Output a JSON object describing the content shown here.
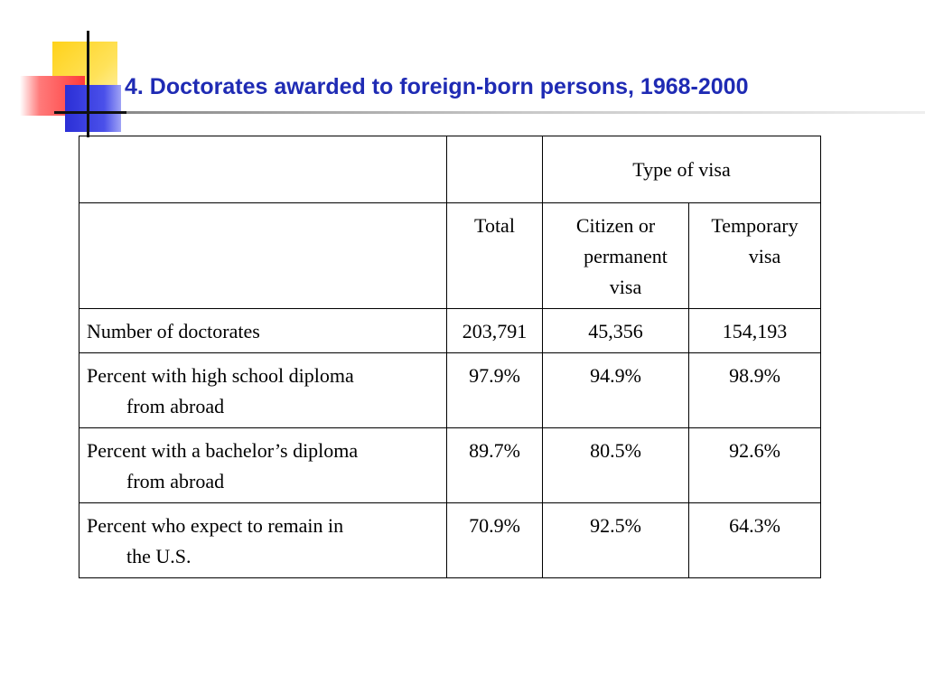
{
  "slide": {
    "title": "4. Doctorates awarded to foreign-born persons, 1968-2000"
  },
  "table": {
    "group_header": "Type of visa",
    "col_total": "Total",
    "col_citizen_line1": "Citizen or",
    "col_citizen_line2": "permanent",
    "col_citizen_line3": "visa",
    "col_temp_line1": "Temporary",
    "col_temp_line2": "visa",
    "rows": [
      {
        "label1": "Number of doctorates",
        "label2": "",
        "total": "203,791",
        "citizen": "45,356",
        "temporary": "154,193"
      },
      {
        "label1": "Percent with high school diploma",
        "label2": "from abroad",
        "total": "97.9%",
        "citizen": "94.9%",
        "temporary": "98.9%"
      },
      {
        "label1": "Percent with a bachelor’s diploma",
        "label2": "from abroad",
        "total": "89.7%",
        "citizen": "80.5%",
        "temporary": "92.6%"
      },
      {
        "label1": "Percent who expect to remain in",
        "label2": "the U.S.",
        "total": "70.9%",
        "citizen": "92.5%",
        "temporary": "64.3%"
      }
    ]
  }
}
